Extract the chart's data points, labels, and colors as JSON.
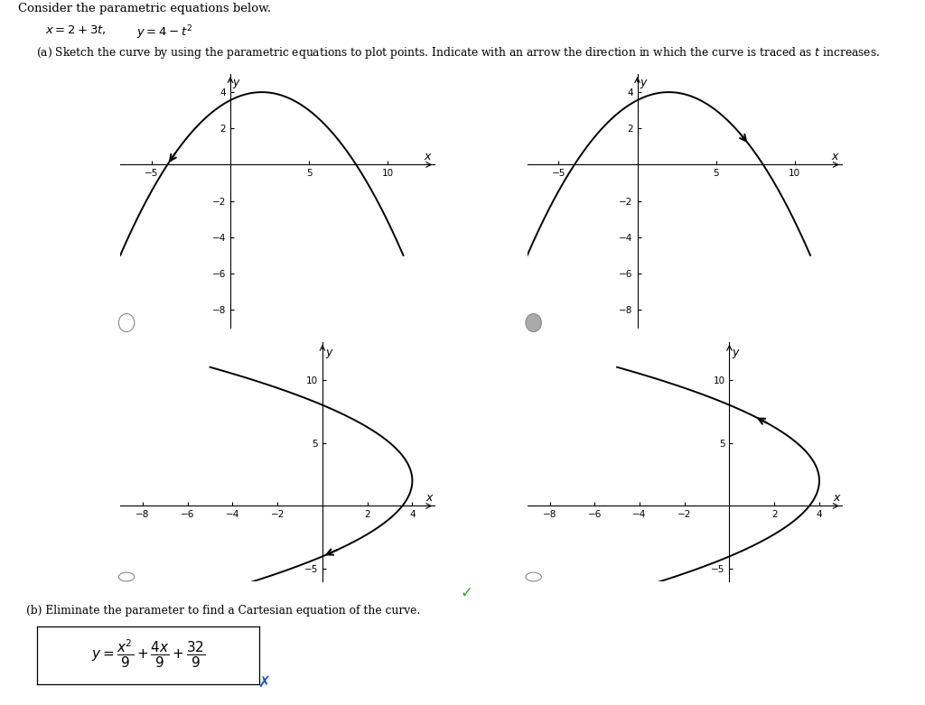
{
  "title_text": "Consider the parametric equations below.",
  "bg_color": "#ffffff",
  "curve_color": "#000000",
  "graphs": [
    {
      "id": 0,
      "swap_xy": false,
      "xlim": [
        -7,
        13
      ],
      "ylim": [
        -9,
        5
      ],
      "xticks": [
        -5,
        5,
        10
      ],
      "yticks": [
        -8,
        -6,
        -4,
        -2,
        2,
        4
      ],
      "arrow_t": -1.8,
      "arrow_dt": -0.2,
      "radio_selected": false,
      "correct": false
    },
    {
      "id": 1,
      "swap_xy": false,
      "xlim": [
        -7,
        13
      ],
      "ylim": [
        -9,
        5
      ],
      "xticks": [
        -5,
        5,
        10
      ],
      "yticks": [
        -8,
        -6,
        -4,
        -2,
        2,
        4
      ],
      "arrow_t": 1.5,
      "arrow_dt": 0.2,
      "radio_selected": true,
      "correct": true
    },
    {
      "id": 2,
      "swap_xy": true,
      "xlim": [
        -9,
        5
      ],
      "ylim": [
        -6,
        13
      ],
      "xticks": [
        -8,
        -6,
        -4,
        -2,
        2,
        4
      ],
      "yticks": [
        -5,
        5,
        10
      ],
      "arrow_t": -1.8,
      "arrow_dt": -0.2,
      "radio_selected": false,
      "correct": false
    },
    {
      "id": 3,
      "swap_xy": true,
      "xlim": [
        -9,
        5
      ],
      "ylim": [
        -6,
        13
      ],
      "xticks": [
        -8,
        -6,
        -4,
        -2,
        2,
        4
      ],
      "yticks": [
        -5,
        5,
        10
      ],
      "arrow_t": 1.5,
      "arrow_dt": 0.2,
      "radio_selected": false,
      "correct": false
    }
  ]
}
